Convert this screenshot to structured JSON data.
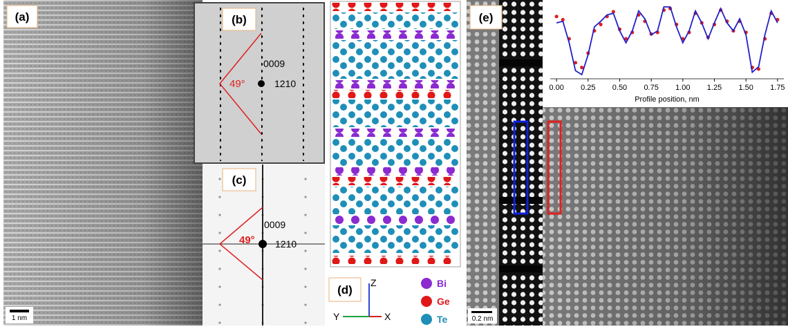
{
  "panels": {
    "a": {
      "label": "(a)",
      "scale": "1 nm"
    },
    "b": {
      "label": "(b)",
      "spot_top": "0009",
      "spot_side": "1210",
      "angle": "49°"
    },
    "c": {
      "label": "(c)",
      "spot_top": "0009",
      "spot_side": "1210",
      "angle": "49°"
    },
    "d": {
      "label": "(d)",
      "legend": [
        "Bi",
        "Ge",
        "Te"
      ],
      "axes": [
        "Z",
        "Y",
        "X"
      ]
    },
    "e": {
      "label": "(e)",
      "scale": "0.2 nm"
    }
  },
  "chart_data": {
    "type": "line",
    "xlabel": "Profile position, nm",
    "xlim": [
      -0.05,
      1.8
    ],
    "xticks": [
      {
        "value": 0,
        "label": "0.00"
      },
      {
        "value": 0.25,
        "label": "0.25"
      },
      {
        "value": 0.5,
        "label": "0.50"
      },
      {
        "value": 0.75,
        "label": "0.75"
      },
      {
        "value": 1,
        "label": "1.00"
      },
      {
        "value": 1.25,
        "label": "1.25"
      },
      {
        "value": 1.5,
        "label": "1.50"
      },
      {
        "value": 1.75,
        "label": "1.75"
      }
    ],
    "x": [
      0,
      0.05,
      0.1,
      0.15,
      0.2,
      0.25,
      0.3,
      0.35,
      0.4,
      0.45,
      0.5,
      0.55,
      0.6,
      0.65,
      0.7,
      0.75,
      0.8,
      0.85,
      0.9,
      0.95,
      1,
      1.05,
      1.1,
      1.15,
      1.2,
      1.25,
      1.3,
      1.35,
      1.4,
      1.45,
      1.5,
      1.55,
      1.6,
      1.65,
      1.7,
      1.75
    ],
    "series": [
      {
        "color": "#e02020",
        "values": [
          0.78,
          0.74,
          0.5,
          0.2,
          0.14,
          0.32,
          0.6,
          0.68,
          0.78,
          0.84,
          0.62,
          0.5,
          0.58,
          0.8,
          0.72,
          0.56,
          0.58,
          0.86,
          0.88,
          0.68,
          0.5,
          0.58,
          0.82,
          0.7,
          0.52,
          0.68,
          0.86,
          0.72,
          0.6,
          0.72,
          0.58,
          0.14,
          0.12,
          0.5,
          0.82,
          0.74
        ]
      },
      {
        "color": "#2020c8",
        "values": [
          0.7,
          0.72,
          0.45,
          0.1,
          0.05,
          0.3,
          0.65,
          0.72,
          0.8,
          0.82,
          0.6,
          0.45,
          0.6,
          0.85,
          0.75,
          0.55,
          0.6,
          0.9,
          0.9,
          0.65,
          0.45,
          0.6,
          0.85,
          0.7,
          0.5,
          0.7,
          0.88,
          0.7,
          0.6,
          0.75,
          0.55,
          0.08,
          0.15,
          0.55,
          0.85,
          0.7
        ]
      }
    ]
  }
}
